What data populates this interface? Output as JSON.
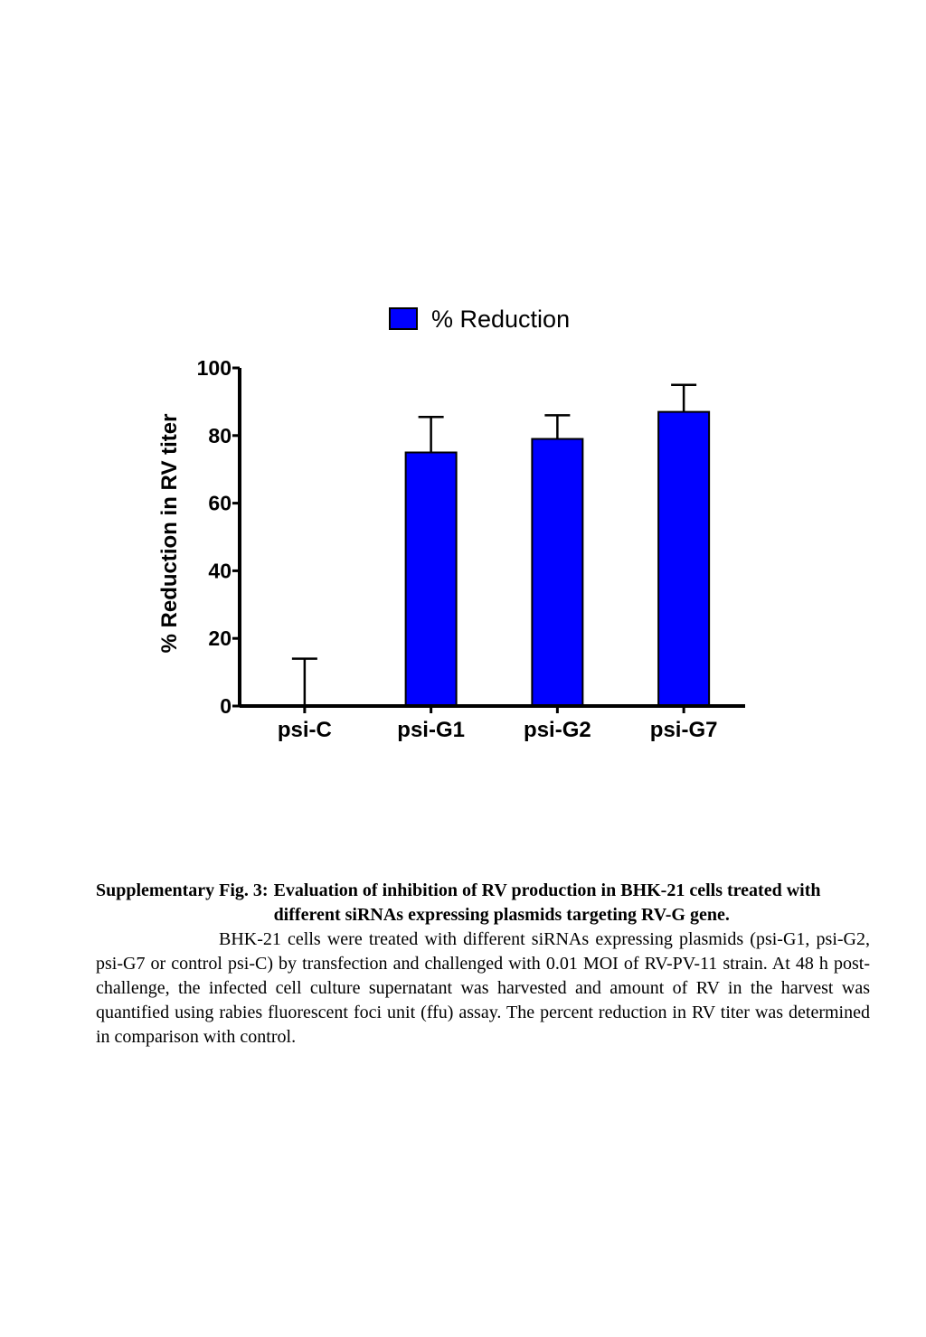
{
  "chart_data": {
    "type": "bar",
    "categories": [
      "psi-C",
      "psi-G1",
      "psi-G2",
      "psi-G7"
    ],
    "series": [
      {
        "name": "% Reduction",
        "values": [
          0,
          75,
          79,
          87
        ],
        "error_plus": [
          14,
          10.5,
          7,
          8
        ],
        "color": "#0000ff"
      }
    ],
    "ylabel": "% Reduction in RV titer",
    "xlabel": "",
    "ylim": [
      0,
      100
    ],
    "yticks": [
      0,
      20,
      40,
      60,
      80,
      100
    ],
    "legend_position": "top-center",
    "grid": false
  },
  "caption": {
    "label": "Supplementary Fig. 3:",
    "title": "Evaluation of inhibition of RV production in BHK-21 cells treated with different siRNAs expressing plasmids targeting RV-G gene.",
    "body": "BHK-21 cells were treated with different siRNAs expressing plasmids (psi-G1, psi-G2, psi-G7 or control psi-C) by transfection and challenged with 0.01 MOI of RV-PV-11 strain. At 48 h post-challenge, the infected cell culture supernatant was harvested and amount of RV in the harvest was quantified using rabies fluorescent foci unit (ffu) assay. The percent reduction in RV titer was determined in comparison with control."
  }
}
